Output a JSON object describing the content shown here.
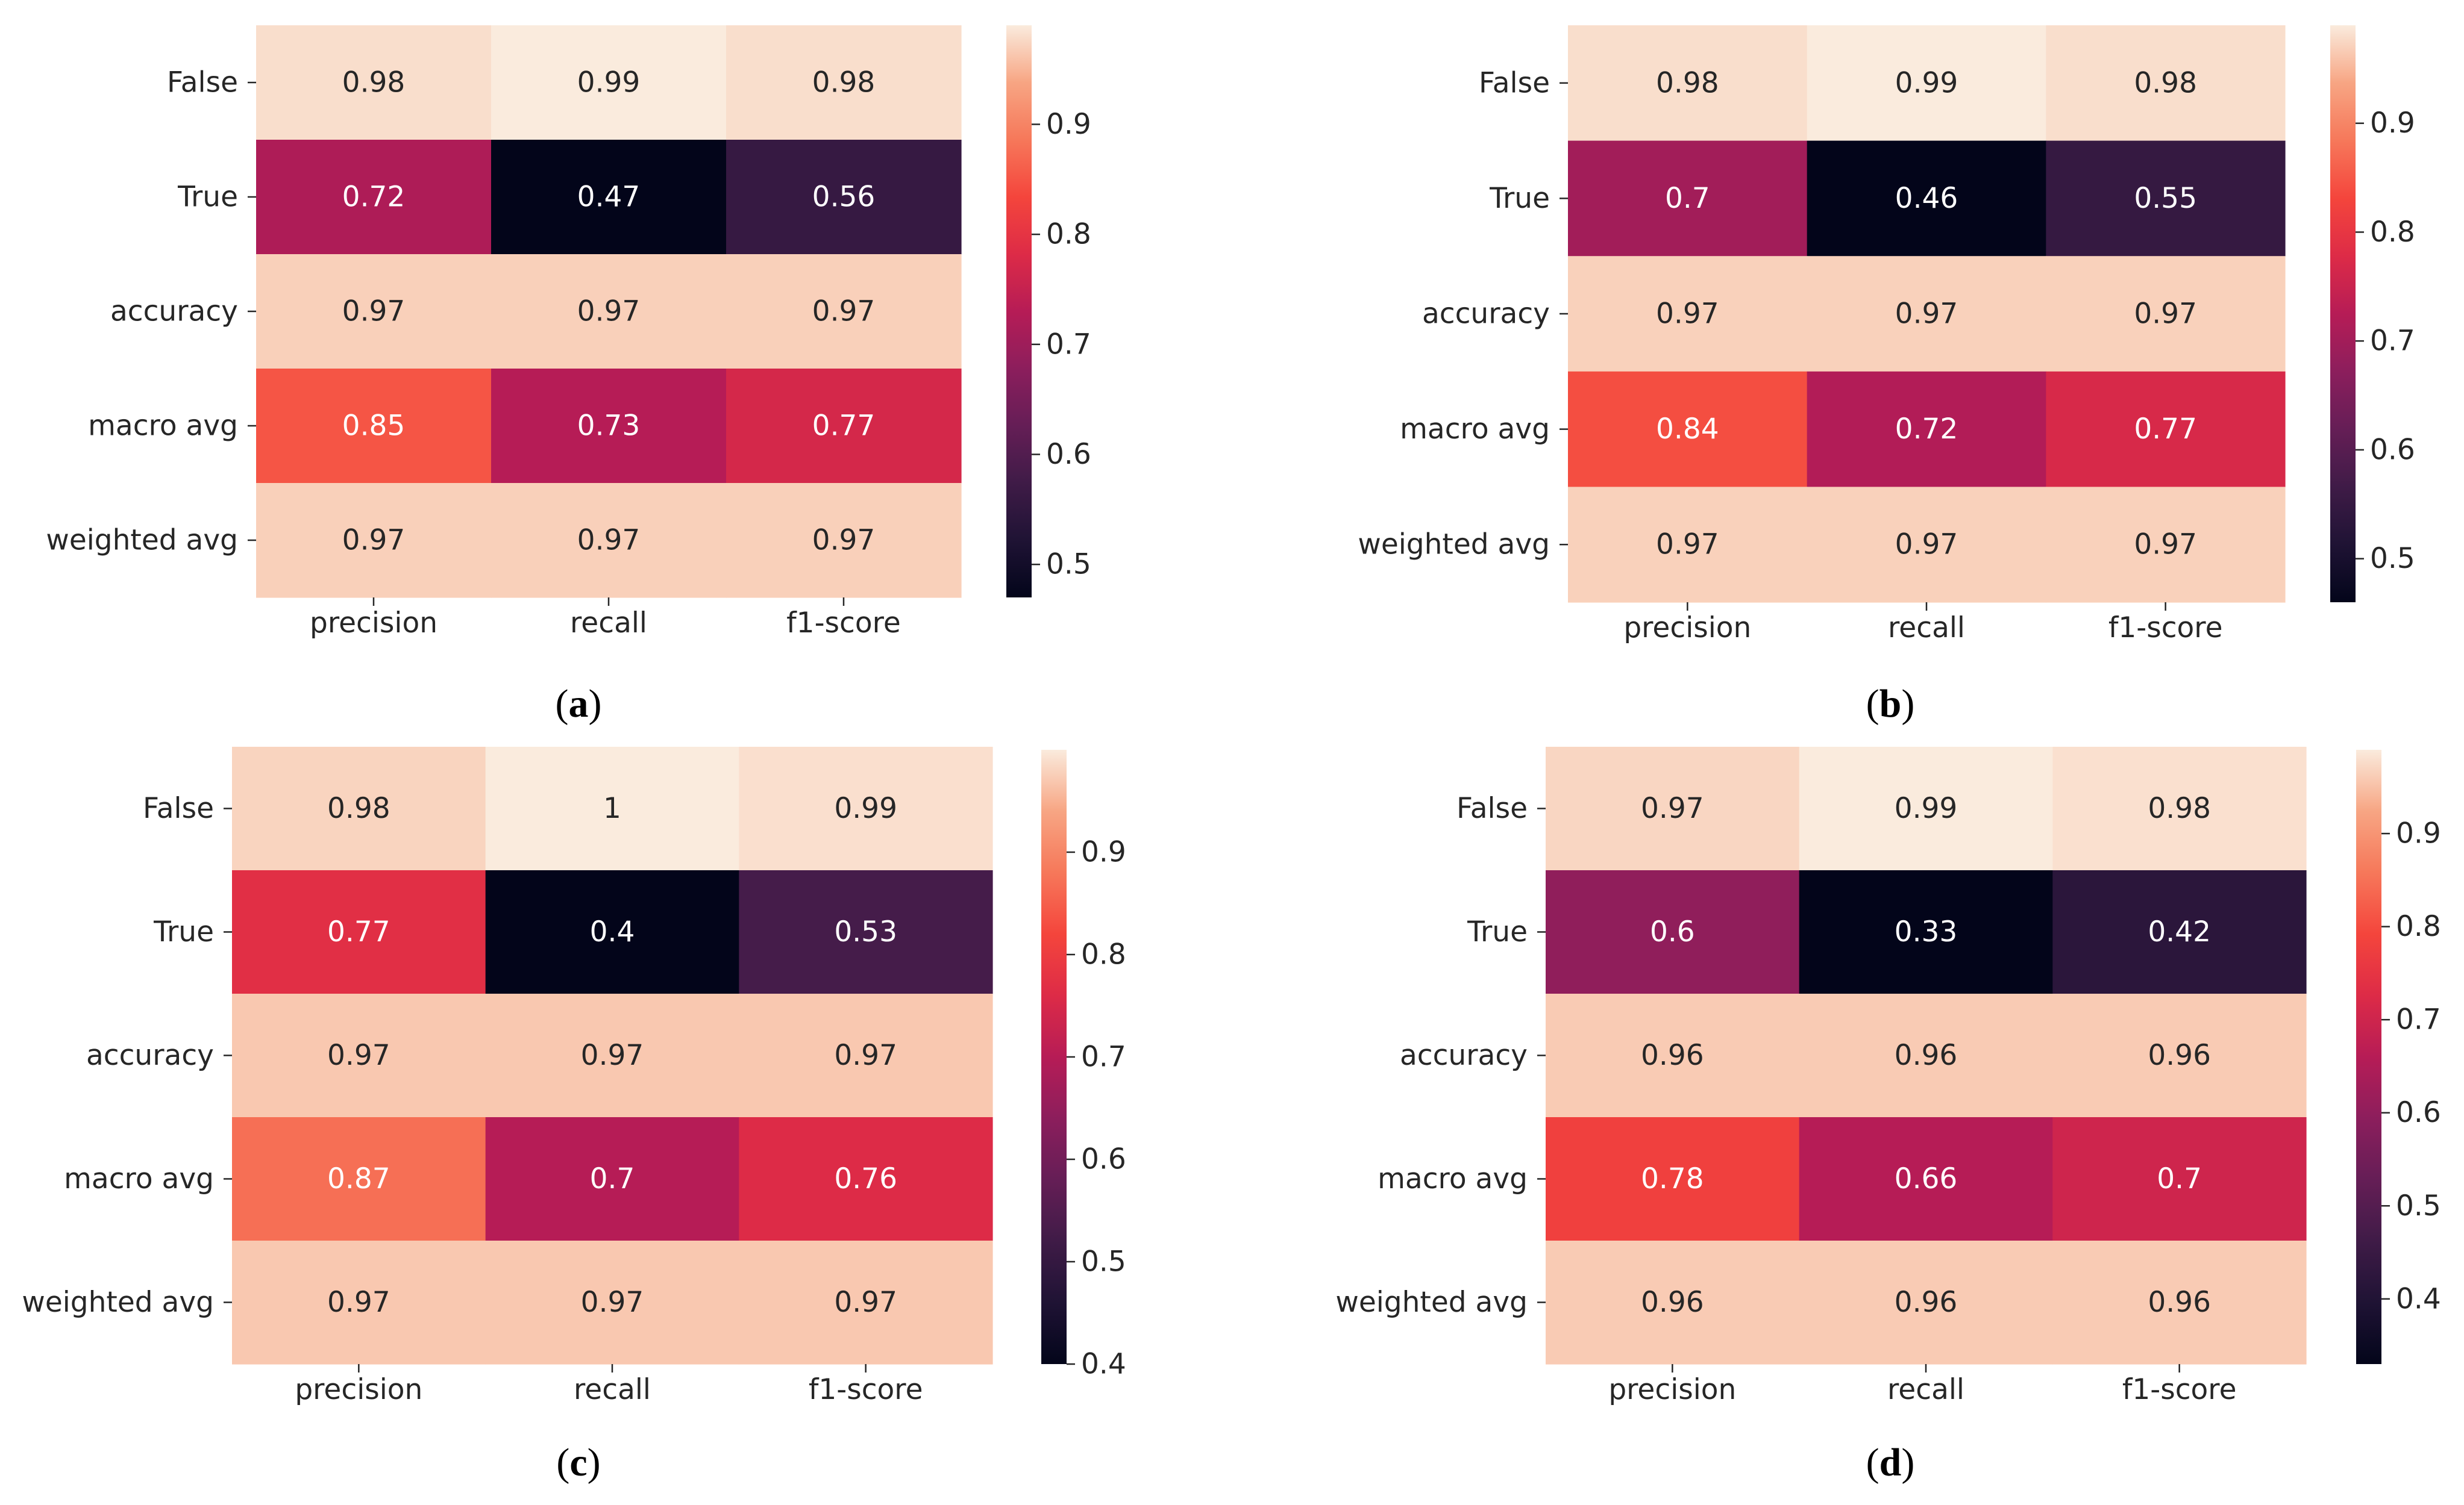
{
  "colormap": {
    "name": "rocket",
    "stops": [
      [
        0.0,
        "#03051a"
      ],
      [
        0.1,
        "#1f1334"
      ],
      [
        0.2,
        "#3f1b47"
      ],
      [
        0.3,
        "#651e56"
      ],
      [
        0.4,
        "#8c1e5c"
      ],
      [
        0.5,
        "#b61c56"
      ],
      [
        0.6,
        "#dd2b47"
      ],
      [
        0.7,
        "#f4453c"
      ],
      [
        0.8,
        "#f6785a"
      ],
      [
        0.9,
        "#f7a583"
      ],
      [
        1.0,
        "#faebdd"
      ]
    ],
    "light_text_color": "#ffffff",
    "dark_text_color": "#262626"
  },
  "chart_data": [
    {
      "type": "heatmap",
      "caption_letter": "a",
      "rows": [
        "False",
        "True",
        "accuracy",
        "macro avg",
        "weighted avg"
      ],
      "columns": [
        "precision",
        "recall",
        "f1-score"
      ],
      "values": [
        [
          0.98,
          0.99,
          0.98
        ],
        [
          0.72,
          0.47,
          0.56
        ],
        [
          0.97,
          0.97,
          0.97
        ],
        [
          0.85,
          0.73,
          0.77
        ],
        [
          0.97,
          0.97,
          0.97
        ]
      ],
      "labels": [
        [
          "0.98",
          "0.99",
          "0.98"
        ],
        [
          "0.72",
          "0.47",
          "0.56"
        ],
        [
          "0.97",
          "0.97",
          "0.97"
        ],
        [
          "0.85",
          "0.73",
          "0.77"
        ],
        [
          "0.97",
          "0.97",
          "0.97"
        ]
      ],
      "vmin": 0.47,
      "vmax": 0.99,
      "colorbar_ticks": [
        "0.5",
        "0.6",
        "0.7",
        "0.8",
        "0.9"
      ]
    },
    {
      "type": "heatmap",
      "caption_letter": "b",
      "rows": [
        "False",
        "True",
        "accuracy",
        "macro avg",
        "weighted avg"
      ],
      "columns": [
        "precision",
        "recall",
        "f1-score"
      ],
      "values": [
        [
          0.98,
          0.99,
          0.98
        ],
        [
          0.7,
          0.46,
          0.55
        ],
        [
          0.97,
          0.97,
          0.97
        ],
        [
          0.84,
          0.72,
          0.77
        ],
        [
          0.97,
          0.97,
          0.97
        ]
      ],
      "labels": [
        [
          "0.98",
          "0.99",
          "0.98"
        ],
        [
          "0.7",
          "0.46",
          "0.55"
        ],
        [
          "0.97",
          "0.97",
          "0.97"
        ],
        [
          "0.84",
          "0.72",
          "0.77"
        ],
        [
          "0.97",
          "0.97",
          "0.97"
        ]
      ],
      "vmin": 0.46,
      "vmax": 0.99,
      "colorbar_ticks": [
        "0.5",
        "0.6",
        "0.7",
        "0.8",
        "0.9"
      ]
    },
    {
      "type": "heatmap",
      "caption_letter": "c",
      "rows": [
        "False",
        "True",
        "accuracy",
        "macro avg",
        "weighted avg"
      ],
      "columns": [
        "precision",
        "recall",
        "f1-score"
      ],
      "values": [
        [
          0.98,
          1.0,
          0.99
        ],
        [
          0.77,
          0.4,
          0.53
        ],
        [
          0.97,
          0.97,
          0.97
        ],
        [
          0.87,
          0.7,
          0.76
        ],
        [
          0.97,
          0.97,
          0.97
        ]
      ],
      "labels": [
        [
          "0.98",
          "1",
          "0.99"
        ],
        [
          "0.77",
          "0.4",
          "0.53"
        ],
        [
          "0.97",
          "0.97",
          "0.97"
        ],
        [
          "0.87",
          "0.7",
          "0.76"
        ],
        [
          "0.97",
          "0.97",
          "0.97"
        ]
      ],
      "vmin": 0.4,
      "vmax": 1.0,
      "colorbar_ticks": [
        "0.4",
        "0.5",
        "0.6",
        "0.7",
        "0.8",
        "0.9"
      ]
    },
    {
      "type": "heatmap",
      "caption_letter": "d",
      "rows": [
        "False",
        "True",
        "accuracy",
        "macro avg",
        "weighted avg"
      ],
      "columns": [
        "precision",
        "recall",
        "f1-score"
      ],
      "values": [
        [
          0.97,
          0.99,
          0.98
        ],
        [
          0.6,
          0.33,
          0.42
        ],
        [
          0.96,
          0.96,
          0.96
        ],
        [
          0.78,
          0.66,
          0.7
        ],
        [
          0.96,
          0.96,
          0.96
        ]
      ],
      "labels": [
        [
          "0.97",
          "0.99",
          "0.98"
        ],
        [
          "0.6",
          "0.33",
          "0.42"
        ],
        [
          "0.96",
          "0.96",
          "0.96"
        ],
        [
          "0.78",
          "0.66",
          "0.7"
        ],
        [
          "0.96",
          "0.96",
          "0.96"
        ]
      ],
      "vmin": 0.33,
      "vmax": 0.99,
      "colorbar_ticks": [
        "0.4",
        "0.5",
        "0.6",
        "0.7",
        "0.8",
        "0.9"
      ]
    }
  ]
}
